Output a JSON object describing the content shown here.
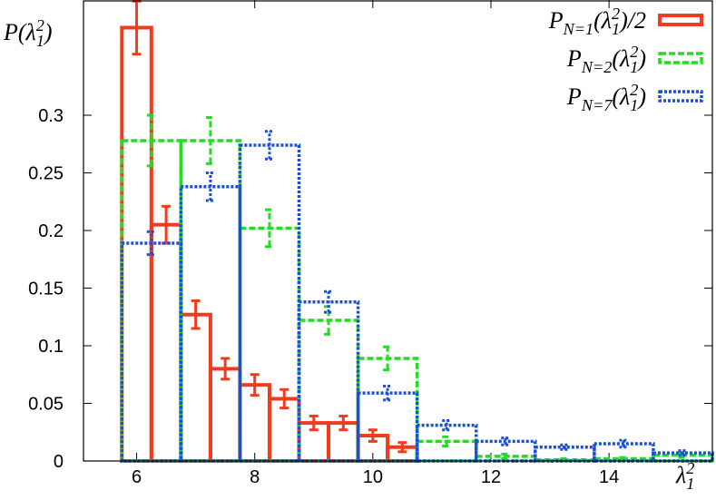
{
  "chart_data": {
    "type": "histogram",
    "ylabel": "P(λ_{1}^{2})",
    "xlabel": "λ_{1}^{2}",
    "xlim": [
      5.1,
      15.75
    ],
    "ylim": [
      0,
      0.4
    ],
    "xticks": [
      6,
      8,
      10,
      12,
      14
    ],
    "yticks": [
      0,
      0.05,
      0.1,
      0.15,
      0.2,
      0.25,
      0.3
    ],
    "legend": "top-right",
    "series": [
      {
        "name": "P_{N=1}(λ_{1}^{2})/2",
        "color": "#f03c1e",
        "linestyle": "solid",
        "bins": [
          5.75,
          6.25,
          6.75,
          7.25,
          7.75,
          8.25,
          8.75,
          9.25,
          9.75,
          10.25,
          10.75
        ],
        "values": [
          0.376,
          0.205,
          0.127,
          0.08,
          0.066,
          0.054,
          0.033,
          0.033,
          0.022,
          0.012
        ],
        "errors": [
          0.023,
          0.016,
          0.012,
          0.009,
          0.009,
          0.008,
          0.006,
          0.006,
          0.005,
          0.004
        ]
      },
      {
        "name": "P_{N=2}(λ_{1}^{2})",
        "color": "#22dd22",
        "linestyle": "dashed",
        "bins": [
          5.75,
          6.75,
          7.75,
          8.75,
          9.75,
          10.75,
          11.75,
          12.75,
          13.75,
          14.75,
          15.75
        ],
        "values": [
          0.278,
          0.278,
          0.202,
          0.122,
          0.089,
          0.017,
          0.004,
          0.001,
          0.002,
          0.005
        ],
        "errors": [
          0.022,
          0.02,
          0.016,
          0.012,
          0.01,
          0.004,
          0.002,
          0.001,
          0.001,
          0.002
        ]
      },
      {
        "name": "P_{N=7}(λ_{1}^{2})",
        "color": "#1a4fd8",
        "linestyle": "dotted",
        "bins": [
          5.75,
          6.75,
          7.75,
          8.75,
          9.75,
          10.75,
          11.75,
          12.75,
          13.75,
          14.75,
          15.75
        ],
        "values": [
          0.189,
          0.238,
          0.274,
          0.138,
          0.059,
          0.031,
          0.017,
          0.012,
          0.015,
          0.007
        ],
        "errors": [
          0.01,
          0.012,
          0.012,
          0.009,
          0.006,
          0.004,
          0.003,
          0.002,
          0.003,
          0.002
        ]
      }
    ]
  }
}
